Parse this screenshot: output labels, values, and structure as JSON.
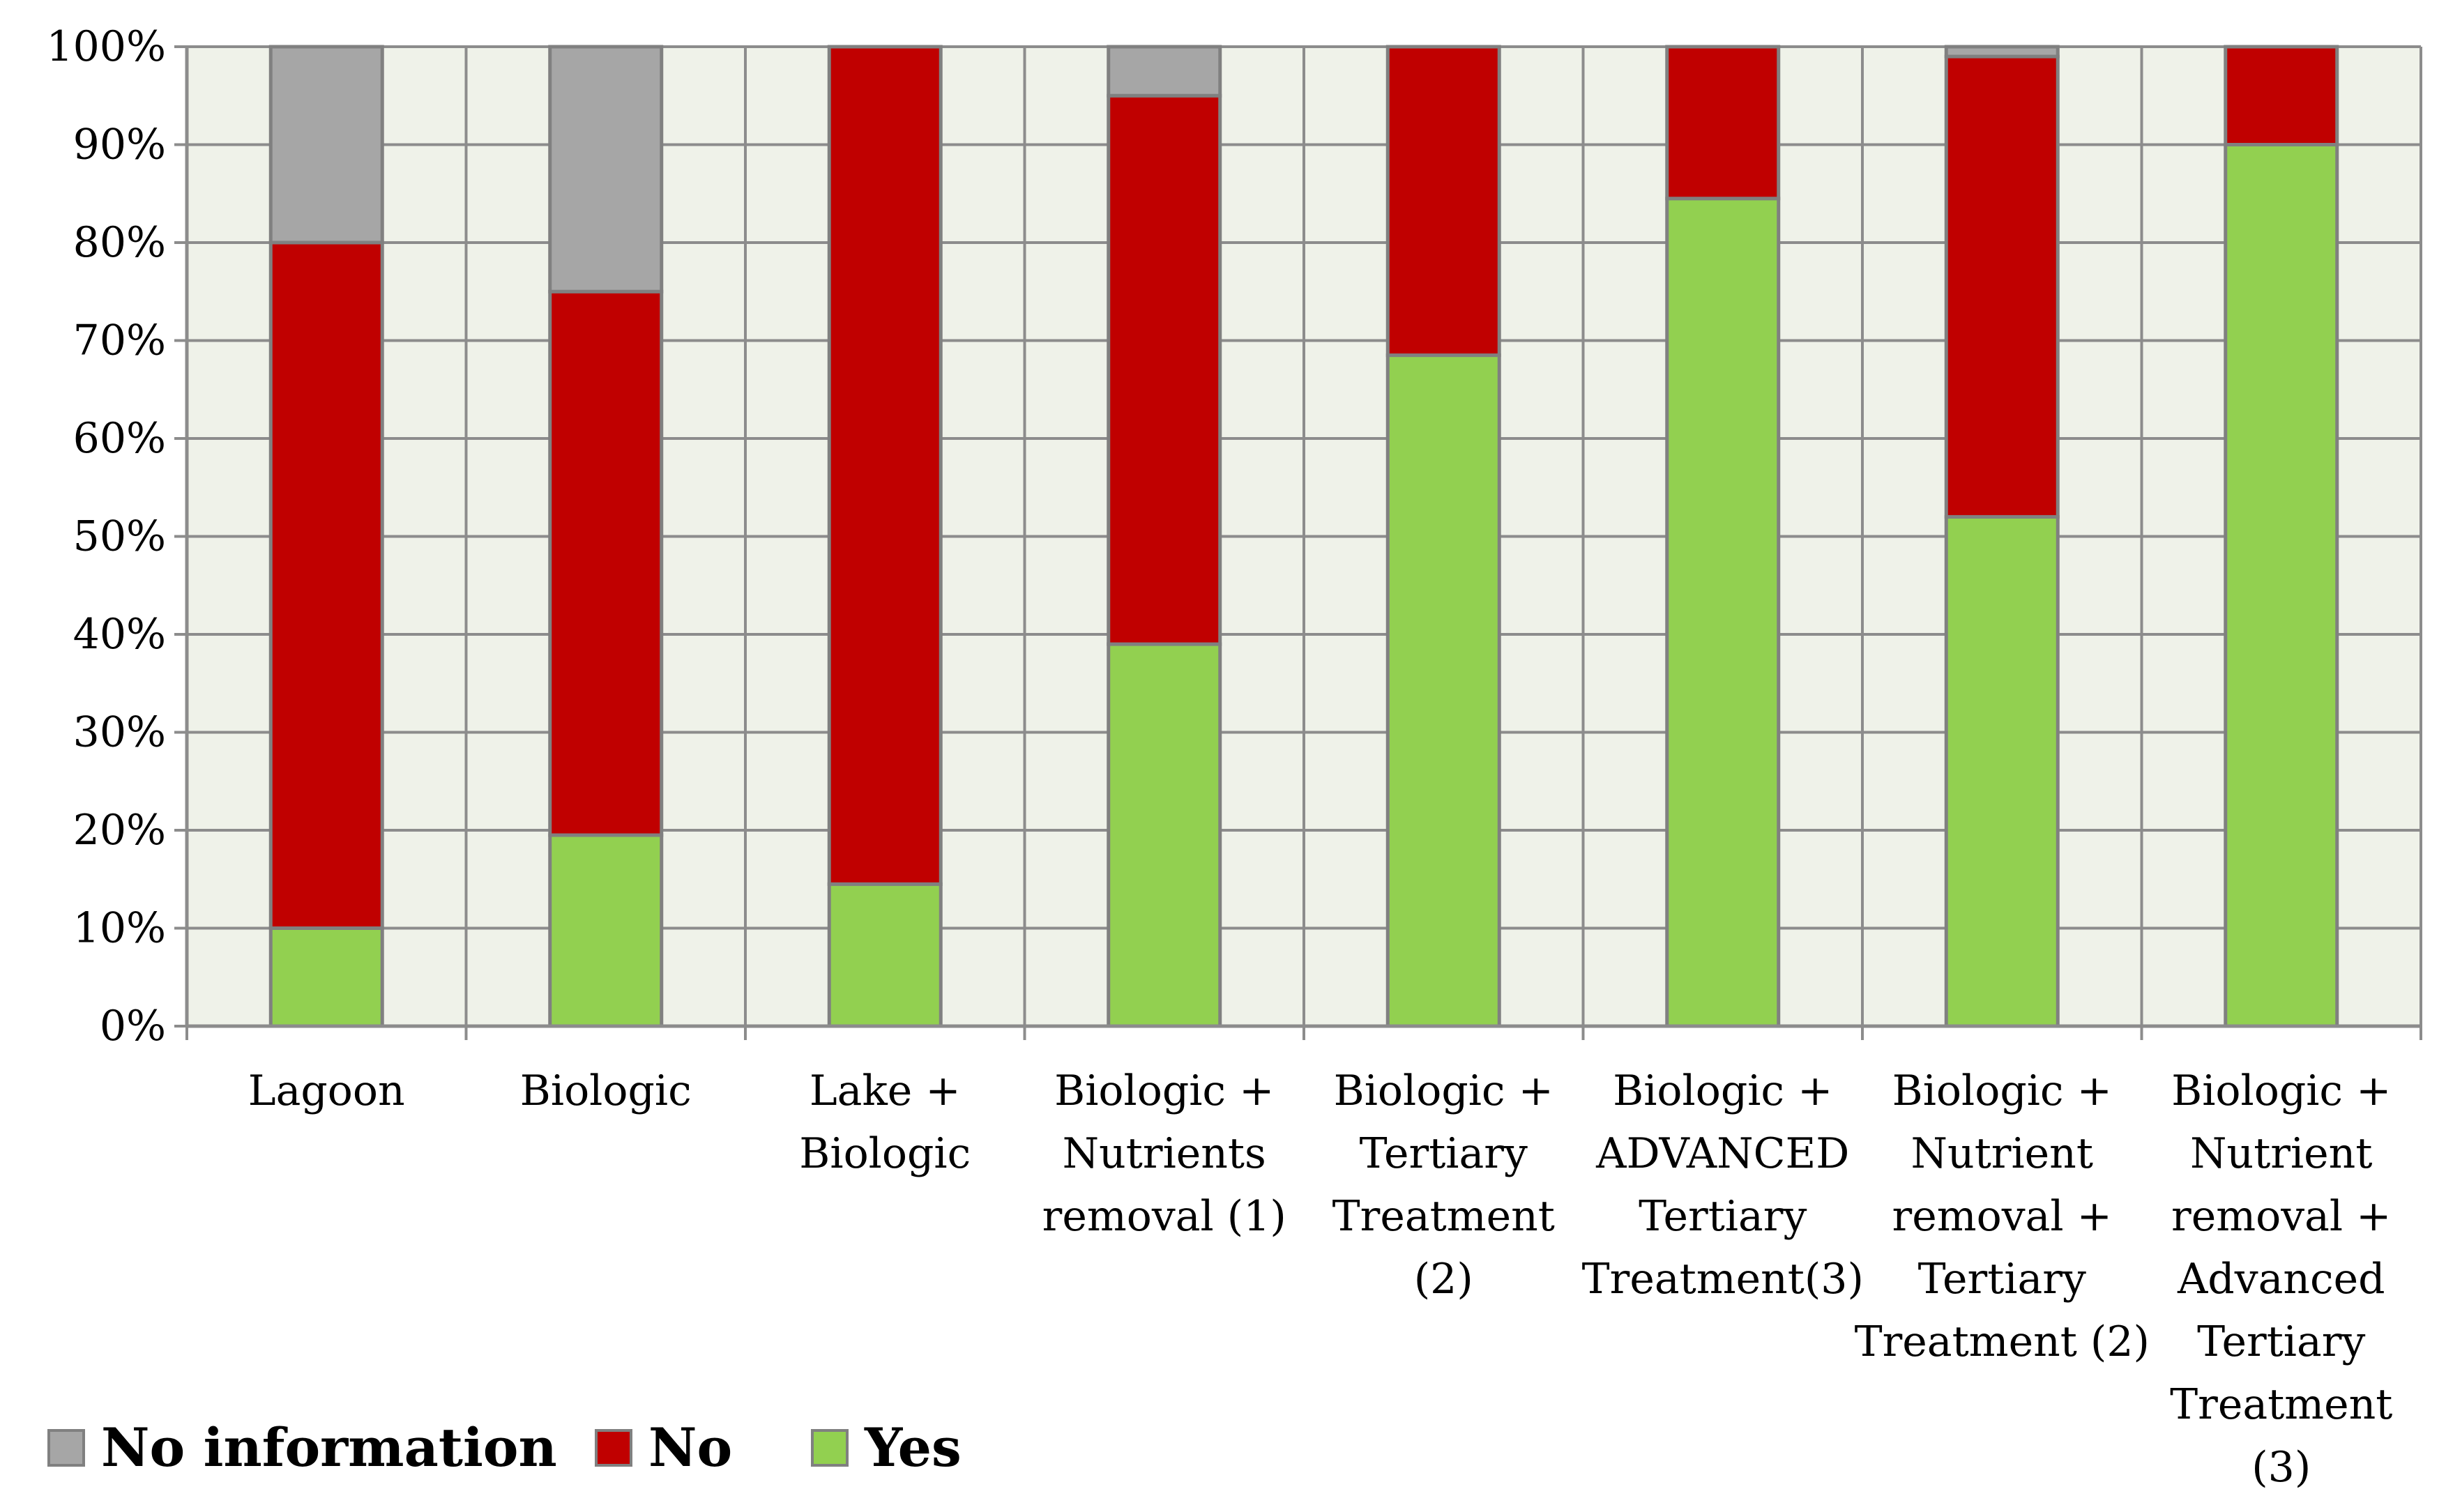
{
  "chart_data": {
    "type": "bar",
    "stacked": true,
    "categories": [
      [
        "Lagoon"
      ],
      [
        "Biologic"
      ],
      [
        "Lake +",
        "Biologic"
      ],
      [
        "Biologic +",
        "Nutrients",
        "removal  (1)"
      ],
      [
        "Biologic +",
        "Tertiary",
        "Treatment",
        "(2)"
      ],
      [
        "Biologic +",
        "ADVANCED",
        "Tertiary",
        "Treatment(3)"
      ],
      [
        "Biologic +",
        "Nutrient",
        "removal +",
        "Tertiary",
        "Treatment (2)"
      ],
      [
        "Biologic +",
        "Nutrient",
        "removal +",
        "Advanced",
        "Tertiary",
        "Treatment",
        "(3)"
      ]
    ],
    "series": [
      {
        "name": "Yes",
        "color": "#92d050",
        "values": [
          10,
          19.5,
          14.5,
          39,
          68.5,
          84.5,
          52,
          90
        ]
      },
      {
        "name": "No",
        "color": "#c00000",
        "values": [
          70,
          55.5,
          85.5,
          56,
          31.5,
          15.5,
          47,
          10
        ]
      },
      {
        "name": "No information",
        "color": "#a6a6a6",
        "values": [
          20,
          25,
          0,
          5,
          0,
          0,
          1,
          0
        ]
      }
    ],
    "legend_order": [
      "No information",
      "No",
      "Yes"
    ],
    "yticks": [
      "0%",
      "10%",
      "20%",
      "30%",
      "40%",
      "50%",
      "60%",
      "70%",
      "80%",
      "90%",
      "100%"
    ],
    "ylim": [
      0,
      100
    ],
    "plot_background": "#eff2e9",
    "grid": true,
    "legend_position": "bottom-left",
    "title": "",
    "xlabel": "",
    "ylabel": ""
  }
}
